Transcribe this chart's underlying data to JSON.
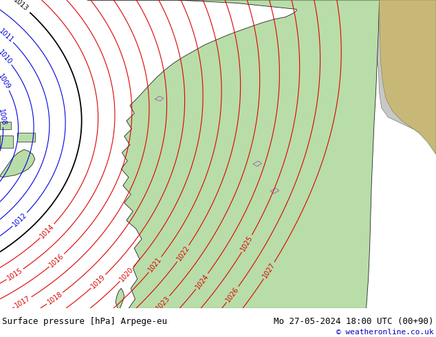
{
  "title_left": "Surface pressure [hPa] Arpege-eu",
  "title_right": "Mo 27-05-2024 18:00 UTC (00+90)",
  "copyright": "© weatheronline.co.uk",
  "fig_width": 6.34,
  "fig_height": 4.9,
  "dpi": 100,
  "map_bg_land": "#b8dda8",
  "map_bg_sea": "#d8d8d8",
  "map_bg_gray": "#c0b090",
  "map_bg_gray2": "#c8c8c8",
  "contour_blue_color": "#0000dd",
  "contour_red_color": "#dd0000",
  "contour_black_color": "#000000",
  "bottom_bar_color": "#e8f0e8",
  "bottom_bar_height": 0.085,
  "title_fontsize": 9,
  "copyright_fontsize": 8,
  "label_fontsize": 7
}
